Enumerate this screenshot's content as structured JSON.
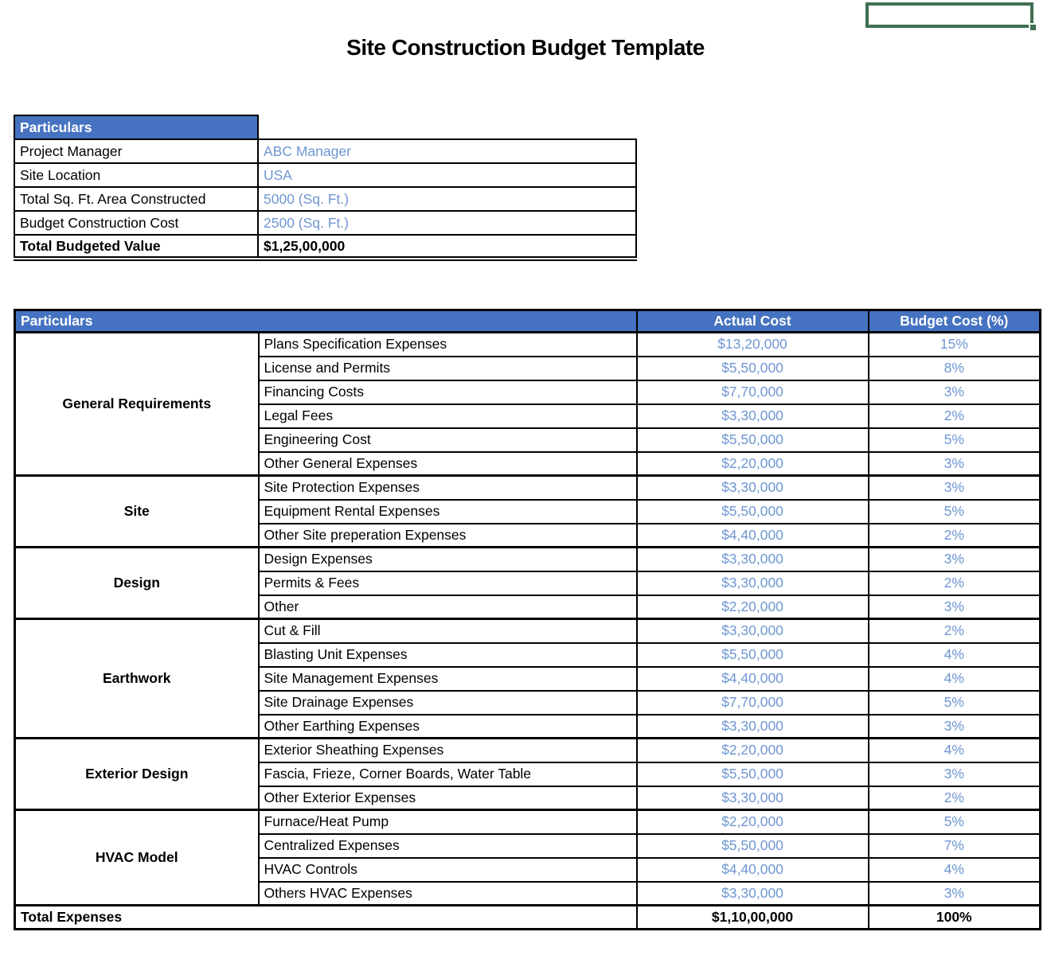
{
  "title": "Site Construction Budget Template",
  "colors": {
    "header_blue": "#4673C1",
    "value_blue": "#6E96D2",
    "selection_green": "#3E6F51",
    "border_black": "#000000"
  },
  "selection": {
    "name": "selected-cell-outline"
  },
  "info_table": {
    "header": "Particulars",
    "rows": [
      {
        "label": "Project Manager",
        "value": "ABC Manager"
      },
      {
        "label": "Site Location",
        "value": "USA"
      },
      {
        "label": "Total Sq. Ft. Area Constructed",
        "value": "5000 (Sq. Ft.)"
      },
      {
        "label": "Budget Construction Cost",
        "value": "2500 (Sq. Ft.)"
      },
      {
        "label": "Total Budgeted Value",
        "value": "$1,25,00,000"
      }
    ]
  },
  "expense_table": {
    "headers": {
      "particulars": "Particulars",
      "actual_cost": "Actual Cost",
      "budget_cost": "Budget Cost (%)"
    },
    "groups": [
      {
        "name": "General Requirements",
        "items": [
          {
            "label": "Plans Specification Expenses",
            "actual_cost": "$13,20,000",
            "budget_pct": "15%"
          },
          {
            "label": "License and Permits",
            "actual_cost": "$5,50,000",
            "budget_pct": "8%"
          },
          {
            "label": "Financing Costs",
            "actual_cost": "$7,70,000",
            "budget_pct": "3%"
          },
          {
            "label": "Legal Fees",
            "actual_cost": "$3,30,000",
            "budget_pct": "2%"
          },
          {
            "label": "Engineering Cost",
            "actual_cost": "$5,50,000",
            "budget_pct": "5%"
          },
          {
            "label": "Other General Expenses",
            "actual_cost": "$2,20,000",
            "budget_pct": "3%"
          }
        ]
      },
      {
        "name": "Site",
        "items": [
          {
            "label": "Site Protection Expenses",
            "actual_cost": "$3,30,000",
            "budget_pct": "3%"
          },
          {
            "label": "Equipment Rental Expenses",
            "actual_cost": "$5,50,000",
            "budget_pct": "5%"
          },
          {
            "label": "Other Site preperation Expenses",
            "actual_cost": "$4,40,000",
            "budget_pct": "2%"
          }
        ]
      },
      {
        "name": "Design",
        "items": [
          {
            "label": "Design Expenses",
            "actual_cost": "$3,30,000",
            "budget_pct": "3%"
          },
          {
            "label": "Permits & Fees",
            "actual_cost": "$3,30,000",
            "budget_pct": "2%"
          },
          {
            "label": "Other",
            "actual_cost": "$2,20,000",
            "budget_pct": "3%"
          }
        ]
      },
      {
        "name": "Earthwork",
        "items": [
          {
            "label": "Cut & Fill",
            "actual_cost": "$3,30,000",
            "budget_pct": "2%"
          },
          {
            "label": "Blasting Unit Expenses",
            "actual_cost": "$5,50,000",
            "budget_pct": "4%"
          },
          {
            "label": "Site Management Expenses",
            "actual_cost": "$4,40,000",
            "budget_pct": "4%"
          },
          {
            "label": "Site Drainage Expenses",
            "actual_cost": "$7,70,000",
            "budget_pct": "5%"
          },
          {
            "label": "Other Earthing Expenses",
            "actual_cost": "$3,30,000",
            "budget_pct": "3%"
          }
        ]
      },
      {
        "name": "Exterior Design",
        "items": [
          {
            "label": "Exterior Sheathing Expenses",
            "actual_cost": "$2,20,000",
            "budget_pct": "4%"
          },
          {
            "label": "Fascia, Frieze, Corner Boards, Water Table",
            "actual_cost": "$5,50,000",
            "budget_pct": "3%"
          },
          {
            "label": "Other Exterior Expenses",
            "actual_cost": "$3,30,000",
            "budget_pct": "2%"
          }
        ]
      },
      {
        "name": "HVAC Model",
        "items": [
          {
            "label": "Furnace/Heat Pump",
            "actual_cost": "$2,20,000",
            "budget_pct": "5%"
          },
          {
            "label": "Centralized Expenses",
            "actual_cost": "$5,50,000",
            "budget_pct": "7%"
          },
          {
            "label": "HVAC Controls",
            "actual_cost": "$4,40,000",
            "budget_pct": "4%"
          },
          {
            "label": "Others HVAC Expenses",
            "actual_cost": "$3,30,000",
            "budget_pct": "3%"
          }
        ]
      }
    ],
    "total": {
      "label": "Total Expenses",
      "actual_cost": "$1,10,00,000",
      "budget_pct": "100%"
    }
  }
}
